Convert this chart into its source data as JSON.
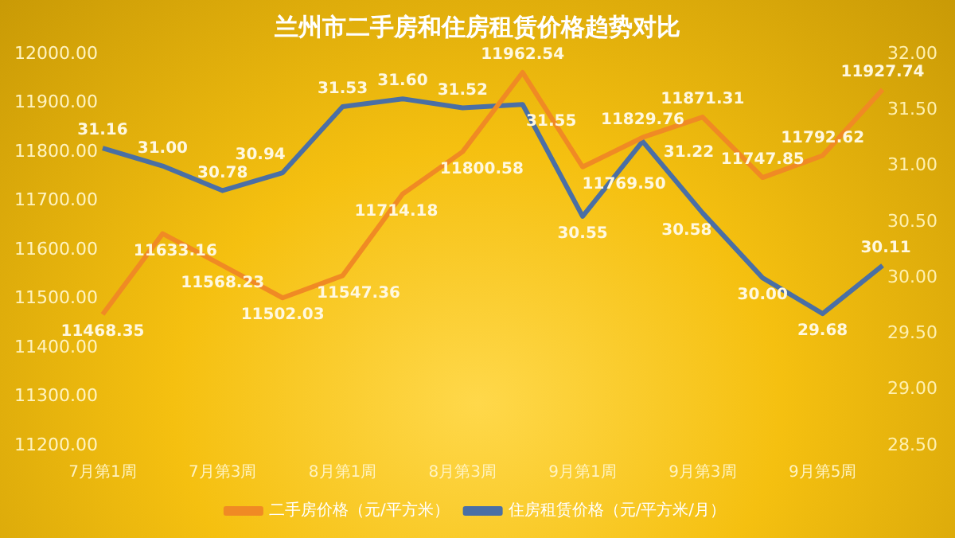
{
  "chart_data": {
    "type": "line",
    "title": "兰州市二手房和住房租赁价格趋势对比",
    "categories": [
      "7月第1周",
      null,
      "7月第3周",
      null,
      "8月第1周",
      null,
      "8月第3周",
      null,
      "9月第1周",
      null,
      "9月第3周",
      null,
      "9月第5周",
      null
    ],
    "series": [
      {
        "name": "二手房价格（元/平方米）",
        "color": "#f08a24",
        "values": [
          11468.35,
          11633.16,
          11568.23,
          11502.03,
          11547.36,
          11714.18,
          11800.58,
          11962.54,
          11769.5,
          11829.76,
          11871.31,
          11747.85,
          11792.62,
          11927.74
        ],
        "value_labels": [
          "11468.35",
          "11633.16",
          "11568.23",
          "11502.03",
          "11547.36",
          "11714.18",
          "11800.58",
          "11962.54",
          "11769.50",
          "11829.76",
          "11871.31",
          "11747.85",
          "11792.62",
          "11927.74"
        ]
      },
      {
        "name": "住房租赁价格（元/平方米/月）",
        "color": "#4a6fa5",
        "axis": "y2",
        "values": [
          31.16,
          31.0,
          30.78,
          30.94,
          31.53,
          31.6,
          31.52,
          31.55,
          30.55,
          31.22,
          30.58,
          30.0,
          29.68,
          30.11
        ],
        "value_labels": [
          "31.16",
          "31.00",
          "30.78",
          "30.94",
          "31.53",
          "31.60",
          "31.52",
          "31.55",
          "30.55",
          "31.22",
          "30.58",
          "30.00",
          "29.68",
          "30.11"
        ]
      }
    ],
    "ylim": [
      11200,
      12000
    ],
    "yticks": [
      {
        "value": 11200,
        "label": "11200.00"
      },
      {
        "value": 11300,
        "label": "11300.00"
      },
      {
        "value": 11400,
        "label": "11400.00"
      },
      {
        "value": 11500,
        "label": "11500.00"
      },
      {
        "value": 11600,
        "label": "11600.00"
      },
      {
        "value": 11700,
        "label": "11700.00"
      },
      {
        "value": 11800,
        "label": "11800.00"
      },
      {
        "value": 11900,
        "label": "11900.00"
      },
      {
        "value": 12000,
        "label": "12000.00"
      }
    ],
    "y2lim": [
      28.5,
      32
    ],
    "y2ticks": [
      {
        "value": 28.5,
        "label": "28.50"
      },
      {
        "value": 29,
        "label": "29.00"
      },
      {
        "value": 29.5,
        "label": "29.50"
      },
      {
        "value": 30,
        "label": "30.00"
      },
      {
        "value": 30.5,
        "label": "30.50"
      },
      {
        "value": 31,
        "label": "31.00"
      },
      {
        "value": 31.5,
        "label": "31.50"
      },
      {
        "value": 32,
        "label": "32.00"
      }
    ],
    "grid": false,
    "legend": "bottom",
    "marker": "none",
    "line_style": "solid"
  }
}
